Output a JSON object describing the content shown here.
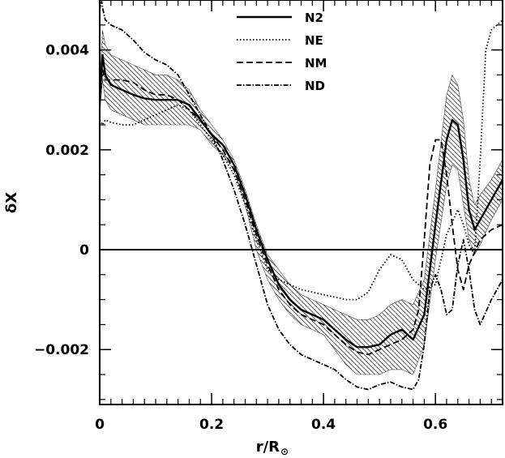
{
  "chart_data": {
    "type": "line",
    "title": "",
    "xlabel": "r/R",
    "xlabel_sub": "⊙",
    "ylabel": "δX",
    "xlim": [
      0,
      0.72
    ],
    "ylim": [
      -0.0031,
      0.005
    ],
    "x_ticks": [
      0,
      0.2,
      0.4,
      0.6
    ],
    "x_tick_labels": [
      "0",
      "0.2",
      "0.4",
      "0.6"
    ],
    "y_ticks": [
      -0.002,
      0,
      0.002,
      0.004
    ],
    "y_tick_labels": [
      "−0.002",
      "0",
      "0.002",
      "0.004"
    ],
    "grid": false,
    "zero_line": true,
    "legend_position": "top-center",
    "series": [
      {
        "name": "N2",
        "dash": "solid",
        "x": [
          0,
          0.005,
          0.01,
          0.02,
          0.04,
          0.06,
          0.08,
          0.1,
          0.12,
          0.14,
          0.16,
          0.18,
          0.2,
          0.22,
          0.24,
          0.26,
          0.28,
          0.3,
          0.32,
          0.34,
          0.36,
          0.38,
          0.4,
          0.42,
          0.44,
          0.46,
          0.48,
          0.5,
          0.52,
          0.54,
          0.56,
          0.58,
          0.6,
          0.62,
          0.63,
          0.64,
          0.65,
          0.66,
          0.67,
          0.68,
          0.7,
          0.72
        ],
        "values": [
          0.003,
          0.0039,
          0.0035,
          0.0033,
          0.0032,
          0.0031,
          0.00303,
          0.003,
          0.003,
          0.003,
          0.0029,
          0.0026,
          0.0023,
          0.0021,
          0.0017,
          0.0011,
          0.0004,
          -0.0002,
          -0.0007,
          -0.001,
          -0.0012,
          -0.0013,
          -0.0014,
          -0.0016,
          -0.0018,
          -0.00195,
          -0.00195,
          -0.0019,
          -0.0017,
          -0.0016,
          -0.0018,
          -0.0013,
          0.0005,
          0.0022,
          0.0026,
          0.0025,
          0.0018,
          0.0008,
          0.0004,
          0.0006,
          0.001,
          0.0014
        ]
      },
      {
        "name": "NE",
        "dash": "dotted",
        "x": [
          0,
          0.005,
          0.01,
          0.02,
          0.04,
          0.06,
          0.08,
          0.1,
          0.12,
          0.14,
          0.16,
          0.18,
          0.2,
          0.22,
          0.24,
          0.26,
          0.28,
          0.3,
          0.32,
          0.34,
          0.36,
          0.38,
          0.4,
          0.42,
          0.44,
          0.46,
          0.48,
          0.5,
          0.52,
          0.54,
          0.56,
          0.58,
          0.6,
          0.62,
          0.64,
          0.65,
          0.66,
          0.67,
          0.68,
          0.69,
          0.7,
          0.72
        ],
        "values": [
          0.0026,
          0.0025,
          0.0026,
          0.00255,
          0.0025,
          0.0025,
          0.0026,
          0.0027,
          0.0028,
          0.0029,
          0.0028,
          0.0025,
          0.0022,
          0.0019,
          0.0015,
          0.0009,
          0.0002,
          -0.0004,
          -0.0006,
          -0.0007,
          -0.0008,
          -0.00085,
          -0.0009,
          -0.00095,
          -0.001,
          -0.001,
          -0.00085,
          -0.0004,
          -0.0001,
          -0.0002,
          -0.0006,
          -0.0008,
          -0.0007,
          0.0003,
          0.0008,
          0.0005,
          0.0001,
          -0.0001,
          0.0018,
          0.004,
          0.0044,
          0.0046
        ]
      },
      {
        "name": "NM",
        "dash": "dashed",
        "x": [
          0,
          0.005,
          0.01,
          0.02,
          0.04,
          0.06,
          0.08,
          0.1,
          0.12,
          0.14,
          0.16,
          0.18,
          0.2,
          0.22,
          0.24,
          0.26,
          0.28,
          0.3,
          0.32,
          0.34,
          0.36,
          0.38,
          0.4,
          0.42,
          0.44,
          0.46,
          0.48,
          0.5,
          0.52,
          0.54,
          0.56,
          0.57,
          0.58,
          0.59,
          0.6,
          0.61,
          0.62,
          0.63,
          0.64,
          0.65,
          0.66,
          0.68,
          0.7,
          0.72
        ],
        "values": [
          0.003,
          0.0036,
          0.0034,
          0.0034,
          0.0034,
          0.00335,
          0.0032,
          0.0031,
          0.0031,
          0.003,
          0.0028,
          0.0026,
          0.0023,
          0.002,
          0.0016,
          0.001,
          0.0003,
          -0.0003,
          -0.0008,
          -0.0011,
          -0.0013,
          -0.0014,
          -0.0015,
          -0.0017,
          -0.0019,
          -0.00205,
          -0.0021,
          -0.002,
          -0.0019,
          -0.0018,
          -0.0016,
          -0.0012,
          0.0002,
          0.0017,
          0.0022,
          0.0022,
          0.0015,
          0.0005,
          -0.0004,
          -0.0008,
          -0.0003,
          0.0002,
          0.0004,
          0.0005
        ]
      },
      {
        "name": "ND",
        "dash": "dashdot",
        "x": [
          0,
          0.003,
          0.006,
          0.01,
          0.02,
          0.04,
          0.06,
          0.08,
          0.1,
          0.12,
          0.14,
          0.16,
          0.18,
          0.2,
          0.22,
          0.24,
          0.26,
          0.28,
          0.3,
          0.32,
          0.34,
          0.36,
          0.38,
          0.4,
          0.42,
          0.44,
          0.46,
          0.48,
          0.5,
          0.52,
          0.54,
          0.56,
          0.57,
          0.58,
          0.59,
          0.6,
          0.61,
          0.62,
          0.63,
          0.64,
          0.65,
          0.66,
          0.67,
          0.68,
          0.7,
          0.72
        ],
        "values": [
          0.0048,
          0.005,
          0.0048,
          0.0046,
          0.0045,
          0.0044,
          0.0042,
          0.00395,
          0.0038,
          0.0037,
          0.0035,
          0.0031,
          0.0027,
          0.0023,
          0.0018,
          0.0012,
          0.0005,
          -0.0003,
          -0.0011,
          -0.0016,
          -0.0019,
          -0.0021,
          -0.0022,
          -0.0023,
          -0.0024,
          -0.0026,
          -0.00275,
          -0.0028,
          -0.0027,
          -0.00265,
          -0.00275,
          -0.0028,
          -0.0026,
          -0.0019,
          -0.0008,
          -0.0005,
          -0.0008,
          -0.0013,
          -0.0012,
          -0.0003,
          0.0002,
          -0.0004,
          -0.0012,
          -0.0015,
          -0.001,
          -0.0006
        ]
      }
    ],
    "band": {
      "fill": "hatched",
      "x": [
        0,
        0.005,
        0.01,
        0.02,
        0.04,
        0.06,
        0.08,
        0.1,
        0.12,
        0.14,
        0.16,
        0.18,
        0.2,
        0.22,
        0.24,
        0.26,
        0.28,
        0.3,
        0.32,
        0.34,
        0.36,
        0.38,
        0.4,
        0.42,
        0.44,
        0.46,
        0.48,
        0.5,
        0.52,
        0.54,
        0.56,
        0.58,
        0.6,
        0.62,
        0.63,
        0.64,
        0.65,
        0.66,
        0.67,
        0.68,
        0.7,
        0.72
      ],
      "upper": [
        0.0033,
        0.0044,
        0.0041,
        0.0039,
        0.0038,
        0.0037,
        0.0036,
        0.0035,
        0.0035,
        0.0034,
        0.0032,
        0.0028,
        0.0025,
        0.0022,
        0.0018,
        0.0012,
        0.0005,
        -0.0001,
        -0.0004,
        -0.0007,
        -0.0009,
        -0.001,
        -0.0011,
        -0.0012,
        -0.0013,
        -0.0014,
        -0.0014,
        -0.0013,
        -0.0011,
        -0.001,
        -0.0011,
        -0.0006,
        0.0012,
        0.0031,
        0.0035,
        0.0033,
        0.0026,
        0.0014,
        0.0009,
        0.0011,
        0.0014,
        0.0018
      ],
      "lower": [
        0.0027,
        0.0034,
        0.003,
        0.0028,
        0.0027,
        0.0026,
        0.0025,
        0.0025,
        0.0025,
        0.0025,
        0.0025,
        0.0024,
        0.0021,
        0.0019,
        0.0016,
        0.0009,
        0.0,
        -0.0006,
        -0.001,
        -0.0013,
        -0.0015,
        -0.0016,
        -0.0017,
        -0.002,
        -0.0023,
        -0.0025,
        -0.0025,
        -0.0025,
        -0.0024,
        -0.0024,
        -0.0025,
        -0.0019,
        -0.0002,
        0.0013,
        0.0017,
        0.0016,
        0.0009,
        0.0002,
        -0.0001,
        0.0001,
        0.0006,
        0.001
      ]
    }
  }
}
